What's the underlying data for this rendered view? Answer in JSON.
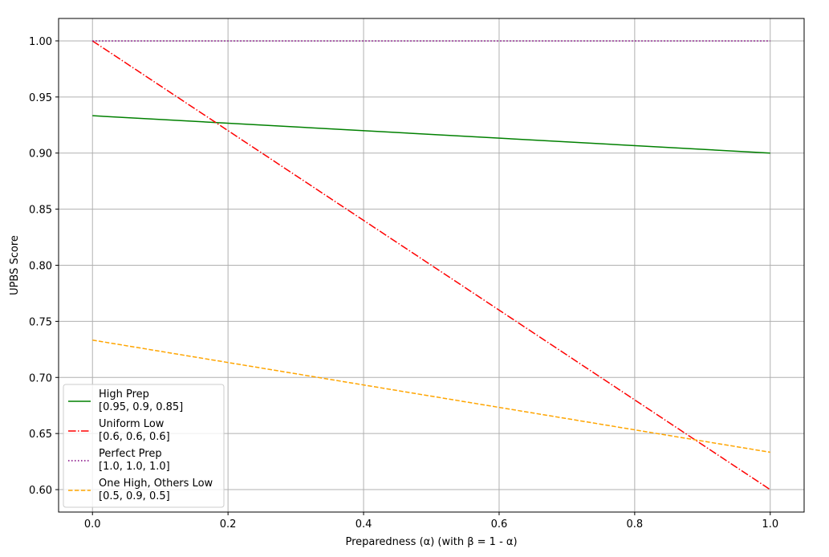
{
  "chart_data": {
    "type": "line",
    "xlabel": "Preparedness (α) (with β = 1 - α)",
    "ylabel": "UPBS Score",
    "xlim": [
      -0.05,
      1.05
    ],
    "ylim": [
      0.58,
      1.02
    ],
    "xticks": [
      0.0,
      0.2,
      0.4,
      0.6,
      0.8,
      1.0
    ],
    "xtick_labels": [
      "0.0",
      "0.2",
      "0.4",
      "0.6",
      "0.8",
      "1.0"
    ],
    "yticks": [
      0.6,
      0.65,
      0.7,
      0.75,
      0.8,
      0.85,
      0.9,
      0.95,
      1.0
    ],
    "ytick_labels": [
      "0.60",
      "0.65",
      "0.70",
      "0.75",
      "0.80",
      "0.85",
      "0.90",
      "0.95",
      "1.00"
    ],
    "grid": true,
    "legend_position": "lower-left",
    "series": [
      {
        "name": "High Prep",
        "sub": "[0.95, 0.9, 0.85]",
        "color": "#008000",
        "dash": "solid",
        "x": [
          0.0,
          1.0
        ],
        "y": [
          0.9333,
          0.9
        ]
      },
      {
        "name": "Uniform Low",
        "sub": "[0.6, 0.6, 0.6]",
        "color": "#ff0000",
        "dash": "dashdot",
        "x": [
          0.0,
          1.0
        ],
        "y": [
          1.0,
          0.6
        ]
      },
      {
        "name": "Perfect Prep",
        "sub": "[1.0, 1.0, 1.0]",
        "color": "#800080",
        "dash": "dotted",
        "x": [
          0.0,
          1.0
        ],
        "y": [
          1.0,
          1.0
        ]
      },
      {
        "name": "One High, Others Low",
        "sub": "[0.5, 0.9, 0.5]",
        "color": "#ffa500",
        "dash": "dashed",
        "x": [
          0.0,
          1.0
        ],
        "y": [
          0.7333,
          0.6333
        ]
      }
    ]
  }
}
